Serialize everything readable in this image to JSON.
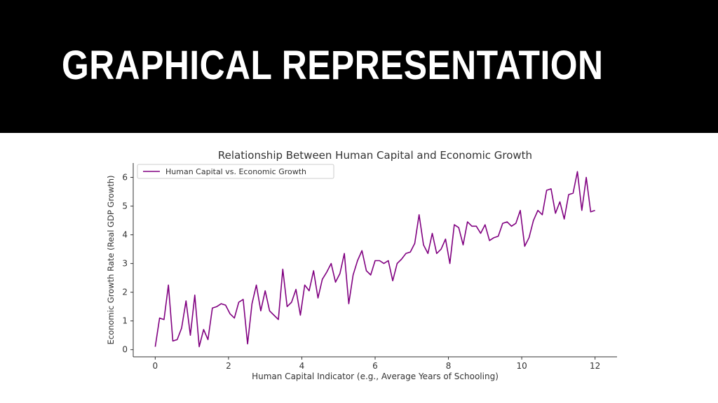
{
  "slide": {
    "title": "GRAPHICAL REPRESENTATION"
  },
  "colors": {
    "header_background": "#000000",
    "title_text": "#ffffff",
    "line": "#800080",
    "axes": "#333333"
  },
  "chart_data": {
    "type": "line",
    "title": "Relationship Between Human Capital and Economic Growth",
    "xlabel": "Human Capital Indicator (e.g., Average Years of Schooling)",
    "ylabel": "Economic Growth Rate (Real GDP Growth)",
    "xlim": [
      -0.6,
      12.6
    ],
    "ylim": [
      -0.25,
      6.5
    ],
    "xticks": [
      0,
      2,
      4,
      6,
      8,
      10,
      12
    ],
    "yticks": [
      0,
      1,
      2,
      3,
      4,
      5,
      6
    ],
    "grid": false,
    "legend": "upper-left",
    "series": [
      {
        "name": "Human Capital vs. Economic Growth",
        "color": "#800080",
        "x": [
          0.0,
          0.12,
          0.24,
          0.36,
          0.48,
          0.6,
          0.72,
          0.84,
          0.96,
          1.08,
          1.2,
          1.32,
          1.44,
          1.56,
          1.68,
          1.8,
          1.92,
          2.04,
          2.16,
          2.28,
          2.4,
          2.52,
          2.64,
          2.76,
          2.88,
          3.0,
          3.12,
          3.24,
          3.36,
          3.48,
          3.6,
          3.72,
          3.84,
          3.96,
          4.08,
          4.2,
          4.32,
          4.44,
          4.56,
          4.68,
          4.8,
          4.92,
          5.04,
          5.16,
          5.28,
          5.4,
          5.52,
          5.64,
          5.76,
          5.88,
          6.0,
          6.12,
          6.24,
          6.36,
          6.48,
          6.6,
          6.72,
          6.84,
          6.96,
          7.08,
          7.2,
          7.32,
          7.44,
          7.56,
          7.68,
          7.8,
          7.92,
          8.04,
          8.16,
          8.28,
          8.4,
          8.52,
          8.64,
          8.76,
          8.88,
          9.0,
          9.12,
          9.24,
          9.36,
          9.48,
          9.6,
          9.72,
          9.84,
          9.96,
          10.08,
          10.2,
          10.32,
          10.44,
          10.56,
          10.68,
          10.8,
          10.92,
          11.04,
          11.16,
          11.28,
          11.4,
          11.52,
          11.64,
          11.76,
          11.88,
          12.0
        ],
        "y": [
          0.1,
          1.1,
          1.05,
          2.25,
          0.3,
          0.35,
          0.75,
          1.7,
          0.5,
          1.9,
          0.1,
          0.7,
          0.35,
          1.45,
          1.5,
          1.6,
          1.55,
          1.25,
          1.1,
          1.65,
          1.75,
          0.2,
          1.6,
          2.25,
          1.35,
          2.05,
          1.35,
          1.2,
          1.05,
          2.8,
          1.5,
          1.65,
          2.1,
          1.2,
          2.25,
          2.05,
          2.75,
          1.8,
          2.45,
          2.7,
          3.0,
          2.35,
          2.65,
          3.35,
          1.6,
          2.6,
          3.1,
          3.45,
          2.75,
          2.6,
          3.1,
          3.1,
          3.0,
          3.1,
          2.4,
          3.0,
          3.15,
          3.35,
          3.4,
          3.7,
          4.7,
          3.65,
          3.35,
          4.05,
          3.35,
          3.5,
          3.85,
          3.0,
          4.35,
          4.25,
          3.65,
          4.45,
          4.3,
          4.3,
          4.05,
          4.35,
          3.8,
          3.9,
          3.95,
          4.4,
          4.45,
          4.3,
          4.4,
          4.85,
          3.6,
          3.9,
          4.5,
          4.85,
          4.7,
          5.55,
          5.6,
          4.75,
          5.15,
          4.55,
          5.4,
          5.45,
          6.2,
          4.85,
          6.0,
          4.8,
          4.85
        ]
      }
    ]
  }
}
